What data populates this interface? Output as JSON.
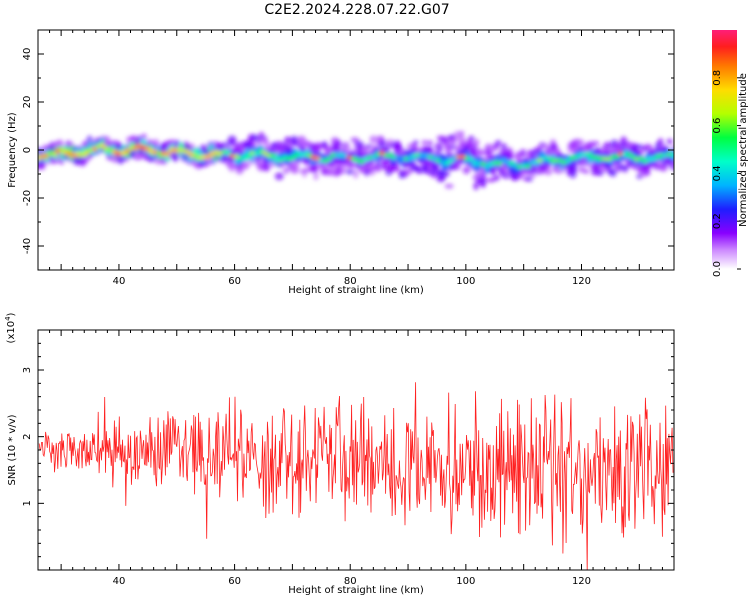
{
  "title": "C2E2.2024.228.07.22.G07",
  "chart_data": [
    {
      "type": "heatmap",
      "xlabel": "Height of straight line (km)",
      "ylabel": "Frequency (Hz)",
      "xlim": [
        26,
        136
      ],
      "ylim": [
        -50,
        50
      ],
      "xticks": [
        40,
        60,
        80,
        100,
        120
      ],
      "yticks": [
        40,
        20,
        0,
        -20,
        -40
      ],
      "colorbar": {
        "label": "Normalized spectral amplitude",
        "range": [
          0,
          1
        ],
        "ticks": [
          "0.0",
          "0.2",
          "0.4",
          "0.6",
          "0.8"
        ]
      },
      "ridge": {
        "x": [
          27,
          30,
          35,
          40,
          45,
          50,
          55,
          60,
          65,
          70,
          75,
          80,
          85,
          90,
          95,
          100,
          105,
          110,
          115,
          120,
          125,
          130,
          135
        ],
        "y": [
          -2,
          -2,
          0,
          0,
          0,
          -1,
          -2,
          -2,
          -2,
          -3,
          -3,
          -3,
          -3,
          -3,
          -4,
          -4,
          -6,
          -6,
          -4,
          -3,
          -3,
          -3,
          -3
        ]
      }
    },
    {
      "type": "line",
      "xlabel": "Height of straight line (km)",
      "ylabel": "SNR (10 * v/v)",
      "multiplier_label": "(x10",
      "multiplier_exp": "4",
      "xlim": [
        26,
        136
      ],
      "ylim": [
        0,
        3.6
      ],
      "xticks": [
        40,
        60,
        80,
        100,
        120
      ],
      "yticks": [
        3,
        2,
        1
      ],
      "color": "#ff2020",
      "series": [
        {
          "x": [
            27,
            30,
            35,
            40,
            45,
            50,
            55,
            60,
            65,
            70,
            75,
            80,
            85,
            90,
            95,
            100,
            105,
            108,
            110,
            115,
            120,
            125,
            130,
            133,
            135
          ],
          "mean": [
            1.85,
            1.8,
            1.8,
            1.8,
            1.8,
            1.75,
            1.75,
            1.7,
            1.7,
            1.65,
            1.65,
            1.6,
            1.6,
            1.6,
            1.6,
            1.55,
            1.55,
            1.55,
            1.55,
            1.55,
            1.55,
            1.55,
            1.55,
            1.6,
            1.6
          ],
          "amplitude": [
            0.25,
            0.35,
            0.5,
            0.6,
            0.7,
            0.75,
            0.85,
            0.9,
            1.0,
            1.0,
            1.05,
            1.1,
            1.1,
            1.15,
            1.2,
            1.2,
            1.25,
            1.3,
            1.3,
            1.3,
            1.25,
            1.3,
            1.3,
            1.35,
            1.1
          ]
        }
      ]
    }
  ]
}
